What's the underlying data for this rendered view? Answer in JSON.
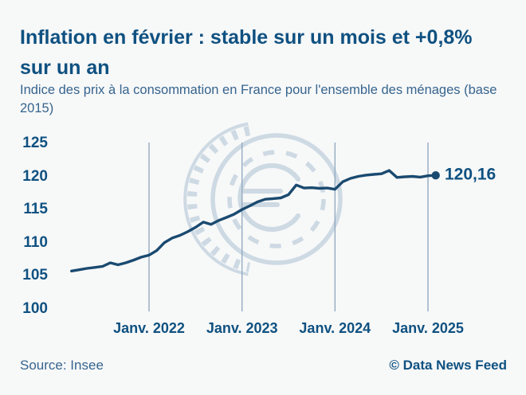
{
  "header": {
    "title": "Inflation en février : stable sur un mois et +0,8% sur un an",
    "subtitle": "Indice des prix à la consommation en France pour l'ensemble des ménages (base 2015)"
  },
  "footer": {
    "source": "Source: Insee",
    "copyright": "© Data News Feed"
  },
  "colors": {
    "background": "#f7f8f8",
    "title_blue": "#0f5181",
    "subtitle_blue": "#36648e",
    "line_navy": "#1a4a70",
    "gridline": "#94abc1",
    "watermark": "#cdd9e3"
  },
  "chart_data": {
    "type": "line",
    "title": "Indice des prix à la consommation en France (base 2015)",
    "frequency": "monthly",
    "x_start": "2021-03",
    "x_end": "2025-02",
    "values": [
      105.7,
      105.9,
      106.1,
      106.25,
      106.4,
      106.95,
      106.65,
      106.95,
      107.35,
      107.8,
      108.1,
      108.8,
      110.0,
      110.7,
      111.1,
      111.65,
      112.3,
      113.1,
      112.75,
      113.35,
      113.8,
      114.3,
      115.0,
      115.55,
      116.15,
      116.55,
      116.65,
      116.75,
      117.25,
      118.7,
      118.25,
      118.3,
      118.2,
      118.25,
      118.05,
      119.2,
      119.7,
      120.0,
      120.2,
      120.3,
      120.4,
      120.9,
      119.85,
      119.95,
      120.0,
      119.9,
      120.1,
      120.16
    ],
    "last_value": 120.16,
    "end_label": "120,16",
    "y_ticks": [
      125,
      120,
      115,
      110,
      105,
      100
    ],
    "ylim": [
      99.5,
      125.5
    ],
    "x_tick_labels": [
      "Janv. 2022",
      "Janv. 2023",
      "Janv. 2024",
      "Janv. 2025"
    ],
    "x_tick_month_indices": [
      10,
      22,
      34,
      46
    ],
    "grid": "vertical-only",
    "legend": "none",
    "marker": "dot-on-last-point"
  }
}
